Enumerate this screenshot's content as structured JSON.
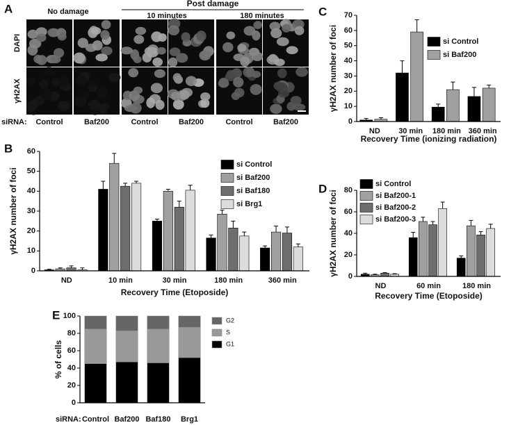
{
  "panel_a": {
    "panel_label": "A",
    "header": "Post damage",
    "groups": [
      "No damage",
      "10 minutes",
      "180 minutes"
    ],
    "rows": [
      "DAPI",
      "γH2AX"
    ],
    "sirna_label": "siRNA:",
    "columns": [
      "Control",
      "Baf200",
      "Control",
      "Baf200",
      "Control",
      "Baf200"
    ]
  },
  "chart_data": [
    {
      "type": "bar",
      "panel_label": "B",
      "xlabel": "Recovery Time (Etoposide)",
      "ylabel": "γH2AX number of foci",
      "categories": [
        "ND",
        "10 min",
        "30 min",
        "180 min",
        "360 min"
      ],
      "series": [
        {
          "name": "si Control",
          "color": "#000000",
          "values": [
            0.5,
            41,
            25,
            16.5,
            11.5
          ],
          "errors": [
            0.3,
            4,
            1,
            1.5,
            1
          ]
        },
        {
          "name": "si Baf200",
          "color": "#a0a0a0",
          "values": [
            1,
            54,
            40,
            28.5,
            19.5
          ],
          "errors": [
            0.5,
            5,
            1,
            2,
            3
          ]
        },
        {
          "name": "si Baf180",
          "color": "#6e6e6e",
          "values": [
            1.5,
            42.5,
            32,
            21.5,
            19
          ],
          "errors": [
            1,
            1.5,
            3,
            3.5,
            3
          ]
        },
        {
          "name": "si Brg1",
          "color": "#dcdcdc",
          "values": [
            0.5,
            44,
            40.5,
            17.5,
            12
          ],
          "errors": [
            1,
            1,
            2.5,
            2,
            1.5
          ]
        }
      ],
      "ylim": [
        0,
        60
      ],
      "yticks": [
        0,
        10,
        20,
        30,
        40,
        50,
        60
      ]
    },
    {
      "type": "bar",
      "panel_label": "C",
      "xlabel": "Recovery Time (ionizing radiation)",
      "ylabel": "γH2AX number of foci",
      "categories": [
        "ND",
        "30 min",
        "180 min",
        "360 min"
      ],
      "series": [
        {
          "name": "si Control",
          "color": "#000000",
          "values": [
            1,
            32,
            9.5,
            16.5
          ],
          "errors": [
            1,
            8,
            2,
            6
          ]
        },
        {
          "name": "si Baf200",
          "color": "#a0a0a0",
          "values": [
            1.5,
            59,
            21,
            22
          ],
          "errors": [
            1,
            8,
            5,
            2
          ]
        }
      ],
      "ylim": [
        0,
        70
      ],
      "yticks": [
        0,
        10,
        20,
        30,
        40,
        50,
        60,
        70
      ]
    },
    {
      "type": "bar",
      "panel_label": "D",
      "xlabel": "Recovery Time (Etoposide)",
      "ylabel": "γH2AX number of foci",
      "categories": [
        "ND",
        "60 min",
        "180 min"
      ],
      "series": [
        {
          "name": "si Control",
          "color": "#000000",
          "values": [
            2,
            36,
            17
          ],
          "errors": [
            1,
            5,
            2
          ]
        },
        {
          "name": "si Baf200-1",
          "color": "#a0a0a0",
          "values": [
            1.5,
            51,
            47
          ],
          "errors": [
            0.5,
            4,
            5
          ]
        },
        {
          "name": "si Baf200-2",
          "color": "#6e6e6e",
          "values": [
            3,
            48,
            38.5
          ],
          "errors": [
            0.5,
            3,
            3
          ]
        },
        {
          "name": "si Baf200-3",
          "color": "#dcdcdc",
          "values": [
            2,
            63,
            44.5
          ],
          "errors": [
            0.5,
            6,
            4
          ]
        }
      ],
      "ylim": [
        0,
        80
      ],
      "yticks": [
        0,
        20,
        40,
        60,
        80
      ]
    },
    {
      "type": "stacked_bar",
      "panel_label": "E",
      "xlabel": "siRNA:",
      "ylabel": "% of cells",
      "categories": [
        "Control",
        "Baf200",
        "Baf180",
        "Brg1"
      ],
      "series": [
        {
          "name": "G1",
          "color": "#000000",
          "values": [
            45,
            47,
            46,
            52
          ]
        },
        {
          "name": "S",
          "color": "#999999",
          "values": [
            40,
            36,
            39,
            35
          ]
        },
        {
          "name": "G2",
          "color": "#666666",
          "values": [
            15,
            17,
            15,
            13
          ]
        }
      ],
      "ylim": [
        0,
        100
      ],
      "yticks": [
        0,
        20,
        40,
        60,
        80,
        100
      ]
    }
  ]
}
